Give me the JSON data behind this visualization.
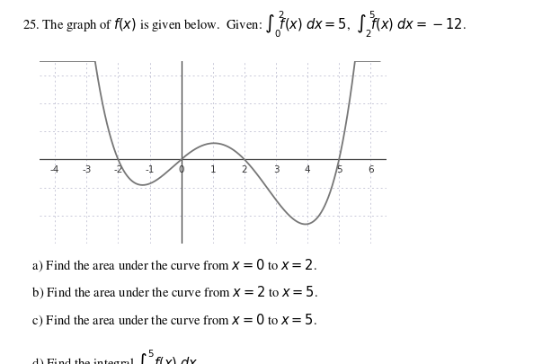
{
  "xlim": [
    -4.5,
    6.5
  ],
  "ylim": [
    -3.0,
    3.5
  ],
  "xticks": [
    -4,
    -3,
    -2,
    -1,
    0,
    1,
    2,
    3,
    4,
    5,
    6
  ],
  "grid_color": "#c8c8d8",
  "axis_color": "#444444",
  "curve_color": "#777777",
  "bg_color": "#ffffff",
  "poly_a": 0.048,
  "tick_fontsize": 7.5,
  "title_fontsize": 10.5,
  "q_fontsize": 10.5
}
